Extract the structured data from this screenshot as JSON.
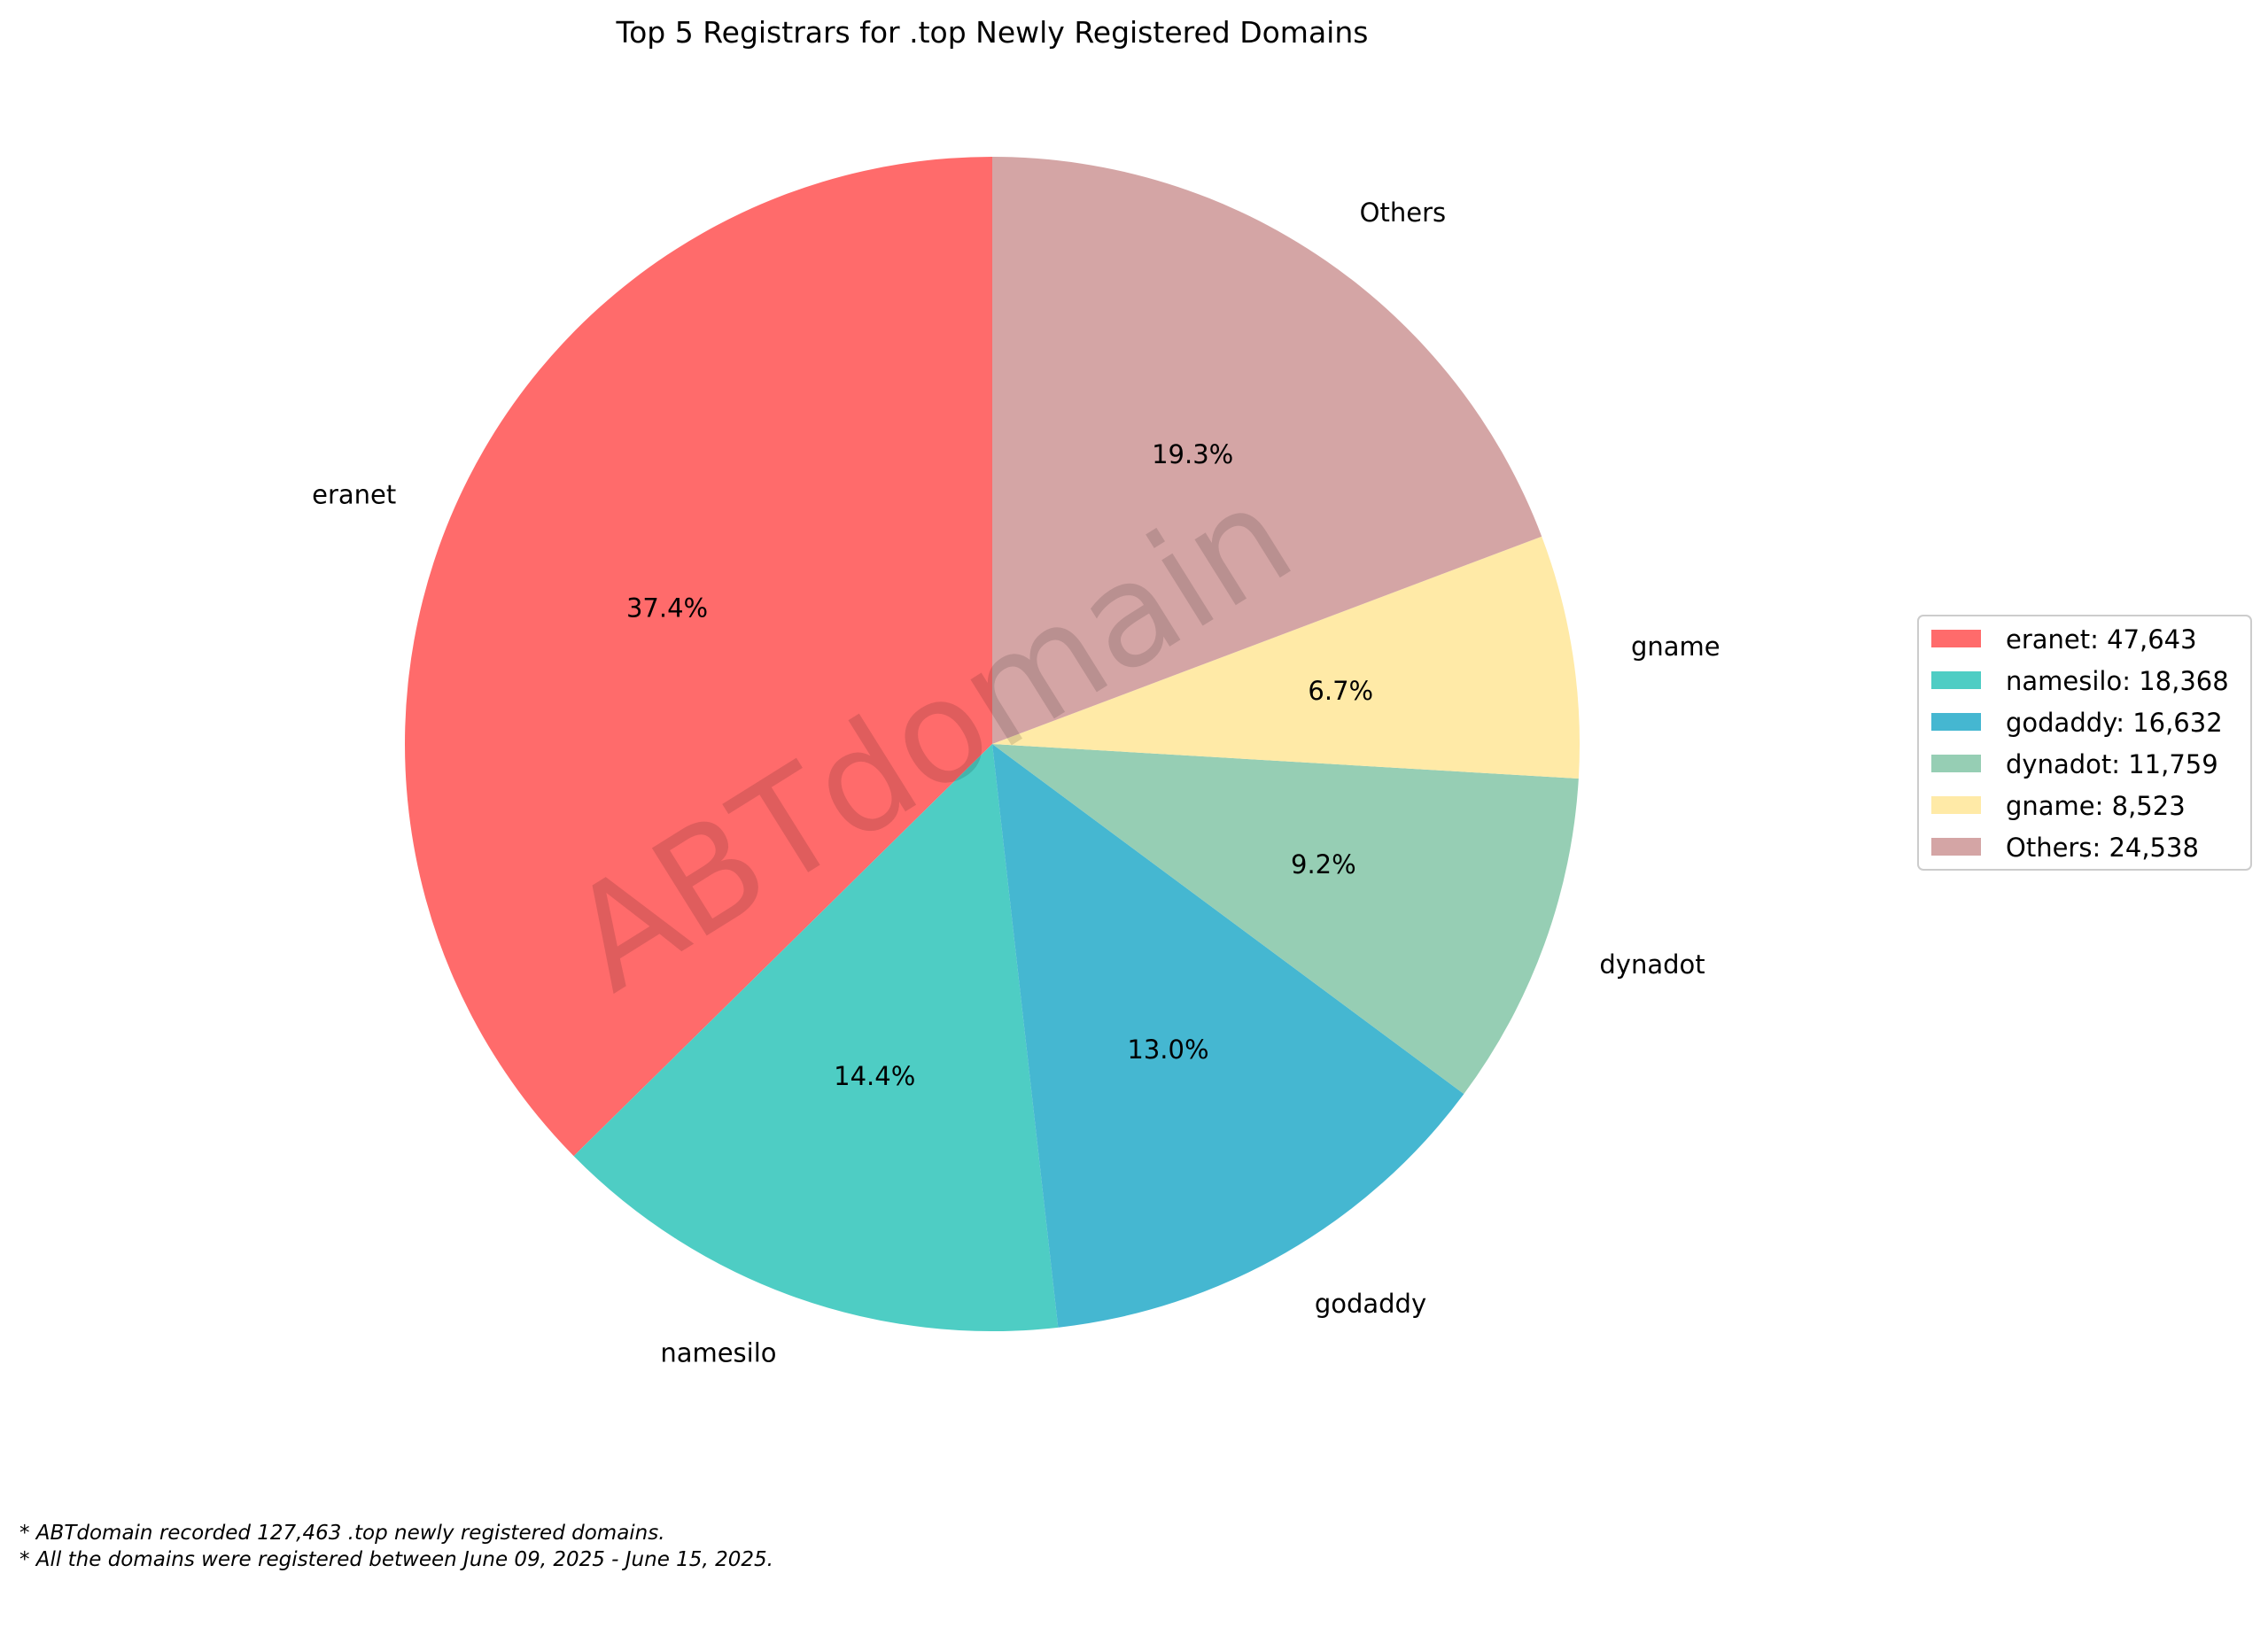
{
  "chart_data": {
    "type": "pie",
    "title": "Top 5 Registrars for .top Newly Registered Domains",
    "start_angle_deg": 90,
    "direction": "counterclockwise",
    "slices": [
      {
        "label": "eranet",
        "value": 47643,
        "percent": "37.4%",
        "legend": "eranet: 47,643",
        "color": "#FF6B6B"
      },
      {
        "label": "namesilo",
        "value": 18368,
        "percent": "14.4%",
        "legend": "namesilo: 18,368",
        "color": "#4ECDC4"
      },
      {
        "label": "godaddy",
        "value": 16632,
        "percent": "13.0%",
        "legend": "godaddy: 16,632",
        "color": "#45B7D1"
      },
      {
        "label": "dynadot",
        "value": 11759,
        "percent": "9.2%",
        "legend": "dynadot: 11,759",
        "color": "#96CEB4"
      },
      {
        "label": "gname",
        "value": 8523,
        "percent": "6.7%",
        "legend": "gname: 8,523",
        "color": "#FFEAA7"
      },
      {
        "label": "Others",
        "value": 24538,
        "percent": "19.3%",
        "legend": "Others: 24,538",
        "color": "#D4A5A5"
      }
    ],
    "legend_position": "right",
    "watermark": "ABTdomain",
    "footnotes": [
      "* ABTdomain recorded 127,463 .top newly registered domains.",
      "* All the domains were registered between June 09, 2025 - June 15, 2025."
    ]
  }
}
